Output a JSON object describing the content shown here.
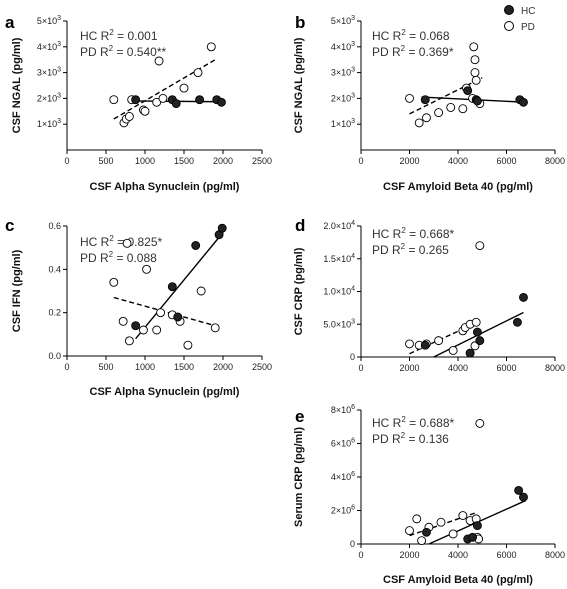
{
  "legend": {
    "items": [
      {
        "label": "HC",
        "marker": "filled"
      },
      {
        "label": "PD",
        "marker": "open"
      }
    ]
  },
  "chart_data": [
    {
      "panel": "a",
      "type": "scatter",
      "xlabel": "CSF Alpha Synuclein (pg/ml)",
      "ylabel": "CSF NGAL (pg/ml)",
      "xlim": [
        0,
        2500
      ],
      "ylim": [
        0,
        5000
      ],
      "x_ticks": [
        "0",
        "500",
        "1000",
        "1500",
        "2000",
        "2500"
      ],
      "x_tick_values": [
        0,
        500,
        1000,
        1500,
        2000,
        2500
      ],
      "y_ticks": [
        {
          "base": "1×10",
          "exp": "3",
          "value": 1000
        },
        {
          "base": "2×10",
          "exp": "3",
          "value": 2000
        },
        {
          "base": "3×10",
          "exp": "3",
          "value": 3000
        },
        {
          "base": "4×10",
          "exp": "3",
          "value": 4000
        },
        {
          "base": "5×10",
          "exp": "3",
          "value": 5000
        }
      ],
      "annotations": [
        {
          "prefix": "HC R",
          "sup": "2",
          "suffix": " = 0.001"
        },
        {
          "prefix": "PD R",
          "sup": "2",
          "suffix": " = 0.540**"
        }
      ],
      "series": [
        {
          "name": "HC",
          "x": [
            880,
            1350,
            1400,
            1700,
            1920,
            1980
          ],
          "y": [
            1950,
            1950,
            1800,
            1950,
            1950,
            1850
          ]
        },
        {
          "name": "PD",
          "x": [
            600,
            730,
            760,
            800,
            830,
            980,
            1000,
            1150,
            1180,
            1230,
            1500,
            1680,
            1850
          ],
          "y": [
            1950,
            1050,
            1200,
            1300,
            1950,
            1550,
            1500,
            1850,
            3450,
            2000,
            2400,
            3000,
            4000
          ]
        }
      ],
      "fit_lines": [
        {
          "series": "HC",
          "x": [
            850,
            2000
          ],
          "y": [
            1900,
            1870
          ],
          "style": "solid"
        },
        {
          "series": "PD",
          "x": [
            600,
            1900
          ],
          "y": [
            1200,
            3500
          ],
          "style": "dashed"
        }
      ]
    },
    {
      "panel": "b",
      "type": "scatter",
      "xlabel": "CSF Amyloid Beta 40 (pg/ml)",
      "ylabel": "CSF NGAL (pg/ml)",
      "xlim": [
        0,
        8000
      ],
      "ylim": [
        0,
        5000
      ],
      "x_ticks": [
        "0",
        "2000",
        "4000",
        "6000",
        "8000"
      ],
      "x_tick_values": [
        0,
        2000,
        4000,
        6000,
        8000
      ],
      "y_ticks": [
        {
          "base": "1×10",
          "exp": "3",
          "value": 1000
        },
        {
          "base": "2×10",
          "exp": "3",
          "value": 2000
        },
        {
          "base": "3×10",
          "exp": "3",
          "value": 3000
        },
        {
          "base": "4×10",
          "exp": "3",
          "value": 4000
        },
        {
          "base": "5×10",
          "exp": "3",
          "value": 5000
        }
      ],
      "annotations": [
        {
          "prefix": "HC R",
          "sup": "2",
          "suffix": " = 0.068"
        },
        {
          "prefix": "PD R",
          "sup": "2",
          "suffix": " = 0.369*"
        }
      ],
      "series": [
        {
          "name": "HC",
          "x": [
            2650,
            4400,
            4750,
            4800,
            6550,
            6700
          ],
          "y": [
            1950,
            2300,
            1950,
            1900,
            1950,
            1850
          ]
        },
        {
          "name": "PD",
          "x": [
            2000,
            2400,
            2700,
            3200,
            3700,
            4200,
            4350,
            4600,
            4650,
            4700,
            4700,
            4750,
            4900
          ],
          "y": [
            2000,
            1050,
            1250,
            1450,
            1650,
            1600,
            2400,
            2000,
            4000,
            3500,
            3000,
            2700,
            1800
          ]
        }
      ],
      "fit_lines": [
        {
          "series": "HC",
          "x": [
            2500,
            6800
          ],
          "y": [
            2050,
            1850
          ],
          "style": "solid"
        },
        {
          "series": "PD",
          "x": [
            2000,
            5000
          ],
          "y": [
            1400,
            2800
          ],
          "style": "dashed"
        }
      ]
    },
    {
      "panel": "c",
      "type": "scatter",
      "xlabel": "CSF Alpha Synuclein (pg/ml)",
      "ylabel": "CSF IFN (pg/ml)",
      "xlim": [
        0,
        2500
      ],
      "ylim": [
        0,
        0.6
      ],
      "x_ticks": [
        "0",
        "500",
        "1000",
        "1500",
        "2000",
        "2500"
      ],
      "x_tick_values": [
        0,
        500,
        1000,
        1500,
        2000,
        2500
      ],
      "y_ticks": [
        {
          "base": "0.0",
          "exp": "",
          "value": 0
        },
        {
          "base": "0.2",
          "exp": "",
          "value": 0.2
        },
        {
          "base": "0.4",
          "exp": "",
          "value": 0.4
        },
        {
          "base": "0.6",
          "exp": "",
          "value": 0.6
        }
      ],
      "annotations": [
        {
          "prefix": "HC R",
          "sup": "2",
          "suffix": " = 0.825*"
        },
        {
          "prefix": "PD R",
          "sup": "2",
          "suffix": " = 0.088"
        }
      ],
      "series": [
        {
          "name": "HC",
          "x": [
            880,
            1350,
            1420,
            1650,
            1950,
            1990
          ],
          "y": [
            0.14,
            0.32,
            0.18,
            0.51,
            0.56,
            0.59
          ]
        },
        {
          "name": "PD",
          "x": [
            600,
            720,
            770,
            800,
            980,
            1020,
            1150,
            1200,
            1350,
            1450,
            1550,
            1720,
            1900
          ],
          "y": [
            0.34,
            0.16,
            0.52,
            0.07,
            0.12,
            0.4,
            0.12,
            0.2,
            0.19,
            0.16,
            0.05,
            0.3,
            0.13
          ]
        }
      ],
      "fit_lines": [
        {
          "series": "HC",
          "x": [
            880,
            2000
          ],
          "y": [
            0.08,
            0.57
          ],
          "style": "solid"
        },
        {
          "series": "PD",
          "x": [
            600,
            1900
          ],
          "y": [
            0.27,
            0.14
          ],
          "style": "dashed"
        }
      ]
    },
    {
      "panel": "d",
      "type": "scatter",
      "xlabel": "",
      "ylabel": "CSF CRP (pg/ml)",
      "xlim": [
        0,
        8000
      ],
      "ylim": [
        0,
        20000
      ],
      "x_ticks": [
        "0",
        "2000",
        "4000",
        "6000",
        "8000"
      ],
      "x_tick_values": [
        0,
        2000,
        4000,
        6000,
        8000
      ],
      "y_ticks": [
        {
          "base": "0",
          "exp": "",
          "value": 0
        },
        {
          "base": "5.0×10",
          "exp": "3",
          "value": 5000
        },
        {
          "base": "1.0×10",
          "exp": "4",
          "value": 10000
        },
        {
          "base": "1.5×10",
          "exp": "4",
          "value": 15000
        },
        {
          "base": "2.0×10",
          "exp": "4",
          "value": 20000
        }
      ],
      "annotations": [
        {
          "prefix": "HC R",
          "sup": "2",
          "suffix": " = 0.668*"
        },
        {
          "prefix": "PD R",
          "sup": "2",
          "suffix": " = 0.265"
        }
      ],
      "series": [
        {
          "name": "HC",
          "x": [
            2650,
            4500,
            4800,
            4900,
            6450,
            6700
          ],
          "y": [
            1800,
            600,
            3800,
            2500,
            5300,
            9100
          ]
        },
        {
          "name": "PD",
          "x": [
            2000,
            2400,
            2700,
            3200,
            3800,
            4200,
            4300,
            4500,
            4700,
            4750,
            4900
          ],
          "y": [
            2000,
            1800,
            2000,
            2500,
            1000,
            4000,
            4500,
            5000,
            1700,
            5300,
            17000
          ]
        }
      ],
      "fit_lines": [
        {
          "series": "HC",
          "x": [
            3000,
            6700
          ],
          "y": [
            0,
            6800
          ],
          "style": "solid"
        },
        {
          "series": "PD",
          "x": [
            2000,
            4800
          ],
          "y": [
            500,
            5300
          ],
          "style": "dashed"
        }
      ]
    },
    {
      "panel": "e",
      "type": "scatter",
      "xlabel": "CSF Amyloid Beta 40 (pg/ml)",
      "ylabel": "Serum CRP (pg/ml)",
      "xlim": [
        0,
        8000
      ],
      "ylim": [
        0,
        8000000
      ],
      "x_ticks": [
        "0",
        "2000",
        "4000",
        "6000",
        "8000"
      ],
      "x_tick_values": [
        0,
        2000,
        4000,
        6000,
        8000
      ],
      "y_ticks": [
        {
          "base": "0",
          "exp": "",
          "value": 0
        },
        {
          "base": "2×10",
          "exp": "6",
          "value": 2000000
        },
        {
          "base": "4×10",
          "exp": "6",
          "value": 4000000
        },
        {
          "base": "6×10",
          "exp": "6",
          "value": 6000000
        },
        {
          "base": "8×10",
          "exp": "6",
          "value": 8000000
        }
      ],
      "annotations": [
        {
          "prefix": "HC R",
          "sup": "2",
          "suffix": " = 0.688*"
        },
        {
          "prefix": "PD R",
          "sup": "2",
          "suffix": " = 0.136"
        }
      ],
      "series": [
        {
          "name": "HC",
          "x": [
            2700,
            4400,
            4600,
            4800,
            6500,
            6700
          ],
          "y": [
            700000,
            300000,
            400000,
            1100000,
            3200000,
            2800000
          ]
        },
        {
          "name": "PD",
          "x": [
            2000,
            2300,
            2500,
            2800,
            3300,
            3800,
            4200,
            4500,
            4750,
            4800,
            4850,
            4900
          ],
          "y": [
            800000,
            1500000,
            200000,
            1000000,
            1300000,
            600000,
            1700000,
            1400000,
            1500000,
            400000,
            300000,
            7200000
          ]
        }
      ],
      "fit_lines": [
        {
          "series": "HC",
          "x": [
            2800,
            6800
          ],
          "y": [
            0,
            2600000
          ],
          "style": "solid"
        },
        {
          "series": "PD",
          "x": [
            2000,
            4800
          ],
          "y": [
            500000,
            1900000
          ],
          "style": "dashed"
        }
      ]
    }
  ]
}
